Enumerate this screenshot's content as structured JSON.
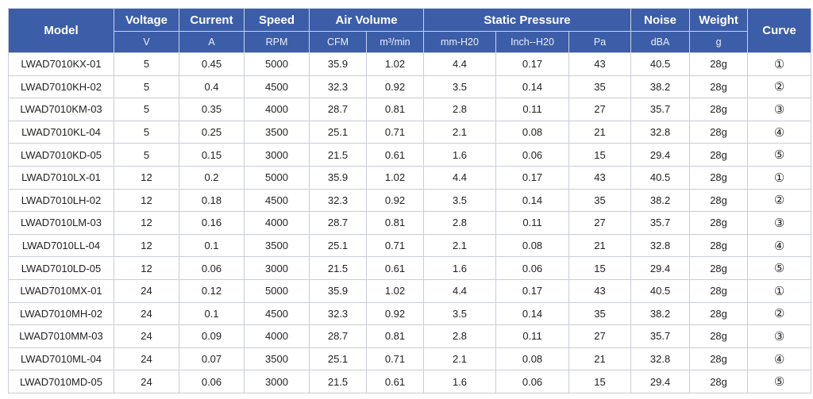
{
  "header": {
    "model": "Model",
    "voltage": "Voltage",
    "current": "Current",
    "speed": "Speed",
    "air_volume": "Air Volume",
    "static_pressure": "Static Pressure",
    "noise": "Noise",
    "weight": "Weight",
    "curve": "Curve",
    "units": [
      "V",
      "A",
      "RPM",
      "CFM",
      "m³/min",
      "mm-H20",
      "Inch--H20",
      "Pa",
      "dBA",
      "g"
    ]
  },
  "rows": [
    [
      "LWAD7010KX-01",
      "5",
      "0.45",
      "5000",
      "35.9",
      "1.02",
      "4.4",
      "0.17",
      "43",
      "40.5",
      "28g",
      "①"
    ],
    [
      "LWAD7010KH-02",
      "5",
      "0.4",
      "4500",
      "32.3",
      "0.92",
      "3.5",
      "0.14",
      "35",
      "38.2",
      "28g",
      "②"
    ],
    [
      "LWAD7010KM-03",
      "5",
      "0.35",
      "4000",
      "28.7",
      "0.81",
      "2.8",
      "0.11",
      "27",
      "35.7",
      "28g",
      "③"
    ],
    [
      "LWAD7010KL-04",
      "5",
      "0.25",
      "3500",
      "25.1",
      "0.71",
      "2.1",
      "0.08",
      "21",
      "32.8",
      "28g",
      "④"
    ],
    [
      "LWAD7010KD-05",
      "5",
      "0.15",
      "3000",
      "21.5",
      "0.61",
      "1.6",
      "0.06",
      "15",
      "29.4",
      "28g",
      "⑤"
    ],
    [
      "LWAD7010LX-01",
      "12",
      "0.2",
      "5000",
      "35.9",
      "1.02",
      "4.4",
      "0.17",
      "43",
      "40.5",
      "28g",
      "①"
    ],
    [
      "LWAD7010LH-02",
      "12",
      "0.18",
      "4500",
      "32.3",
      "0.92",
      "3.5",
      "0.14",
      "35",
      "38.2",
      "28g",
      "②"
    ],
    [
      "LWAD7010LM-03",
      "12",
      "0.16",
      "4000",
      "28.7",
      "0.81",
      "2.8",
      "0.11",
      "27",
      "35.7",
      "28g",
      "③"
    ],
    [
      "LWAD7010LL-04",
      "12",
      "0.1",
      "3500",
      "25.1",
      "0.71",
      "2.1",
      "0.08",
      "21",
      "32.8",
      "28g",
      "④"
    ],
    [
      "LWAD7010LD-05",
      "12",
      "0.06",
      "3000",
      "21.5",
      "0.61",
      "1.6",
      "0.06",
      "15",
      "29.4",
      "28g",
      "⑤"
    ],
    [
      "LWAD7010MX-01",
      "24",
      "0.12",
      "5000",
      "35.9",
      "1.02",
      "4.4",
      "0.17",
      "43",
      "40.5",
      "28g",
      "①"
    ],
    [
      "LWAD7010MH-02",
      "24",
      "0.1",
      "4500",
      "32.3",
      "0.92",
      "3.5",
      "0.14",
      "35",
      "38.2",
      "28g",
      "②"
    ],
    [
      "LWAD7010MM-03",
      "24",
      "0.09",
      "4000",
      "28.7",
      "0.81",
      "2.8",
      "0.11",
      "27",
      "35.7",
      "28g",
      "③"
    ],
    [
      "LWAD7010ML-04",
      "24",
      "0.07",
      "3500",
      "25.1",
      "0.71",
      "2.1",
      "0.08",
      "21",
      "32.8",
      "28g",
      "④"
    ],
    [
      "LWAD7010MD-05",
      "24",
      "0.06",
      "3000",
      "21.5",
      "0.61",
      "1.6",
      "0.06",
      "15",
      "29.4",
      "28g",
      "⑤"
    ]
  ]
}
